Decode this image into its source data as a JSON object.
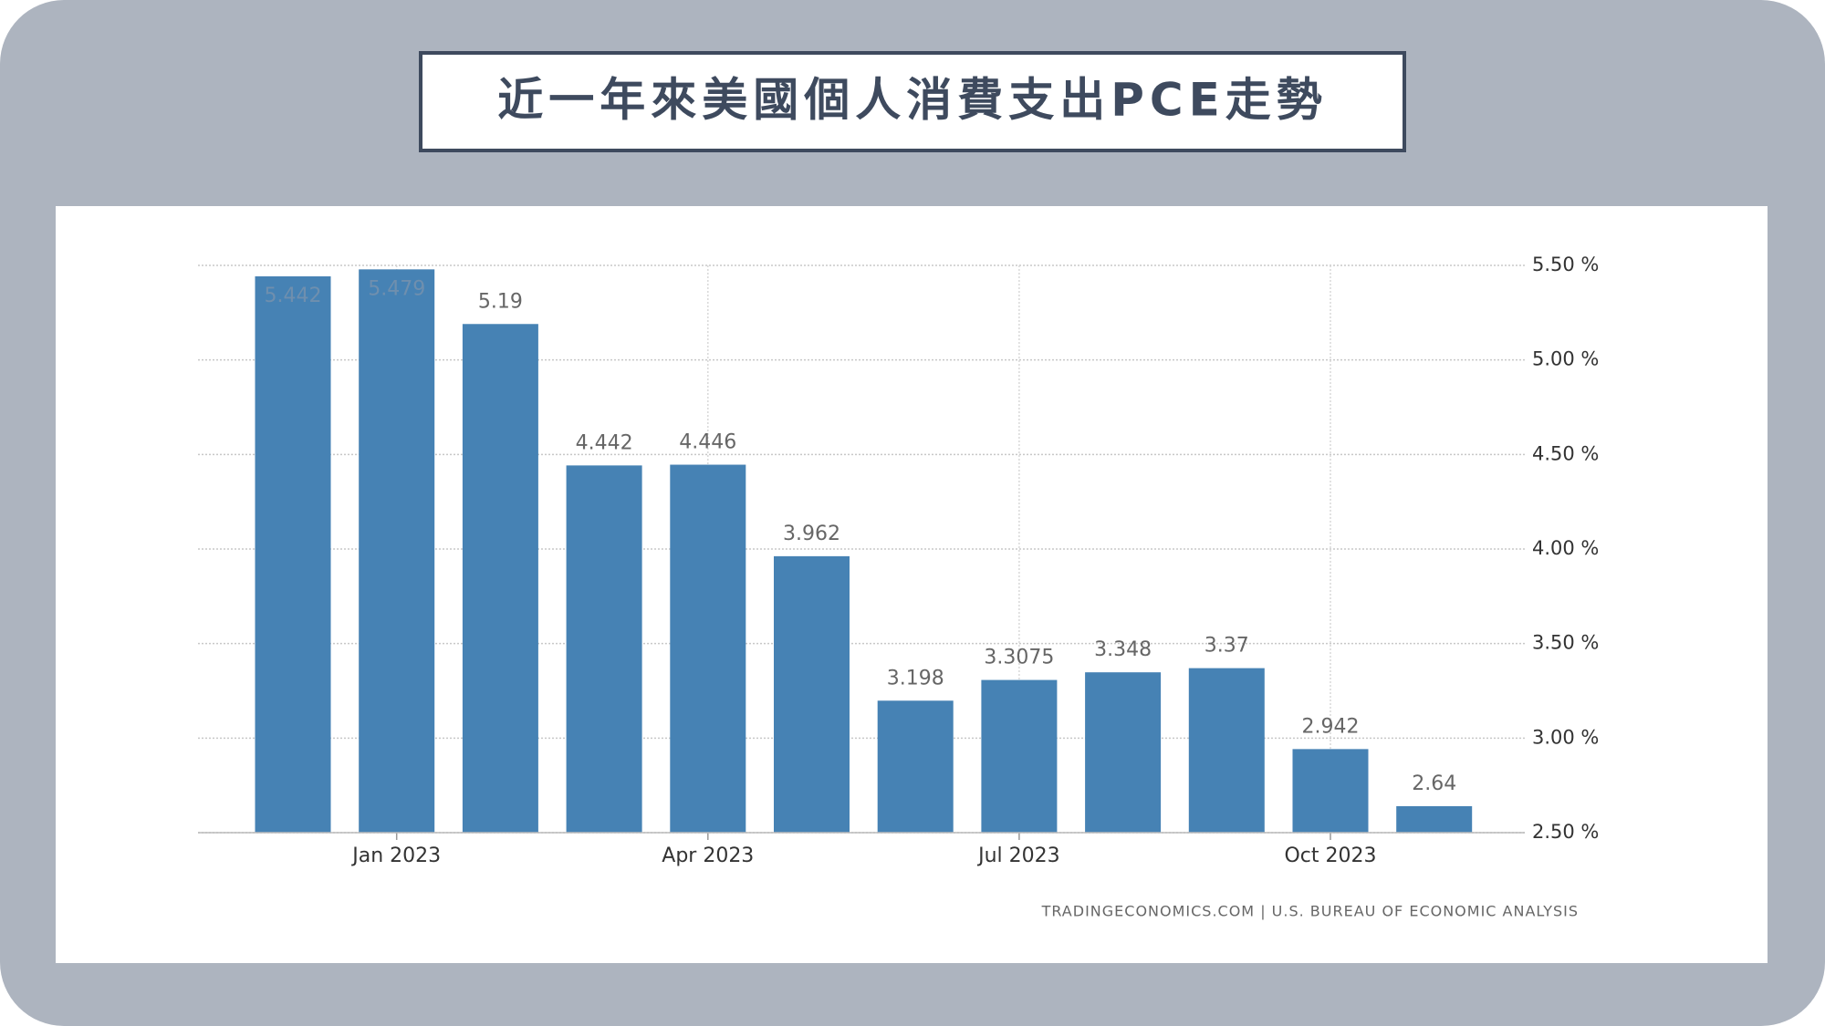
{
  "chart_data": {
    "type": "bar",
    "title": "近一年來美國個人消費支出PCE走勢",
    "source": "TRADINGECONOMICS.COM | U.S. BUREAU OF ECONOMIC ANALYSIS",
    "categories": [
      null,
      "Jan 2023",
      null,
      null,
      "Apr 2023",
      null,
      null,
      "Jul 2023",
      null,
      null,
      "Oct 2023",
      null
    ],
    "values": [
      5.442,
      5.479,
      5.19,
      4.442,
      4.446,
      3.962,
      3.198,
      3.3075,
      3.348,
      3.37,
      2.942,
      2.64
    ],
    "color": "#4682b4",
    "ylim": [
      2.5,
      5.5
    ],
    "yticks": [
      {
        "value": 2.5,
        "label": "2.50 %"
      },
      {
        "value": 3.0,
        "label": "3.00 %"
      },
      {
        "value": 3.5,
        "label": "3.50 %"
      },
      {
        "value": 4.0,
        "label": "4.00 %"
      },
      {
        "value": 4.5,
        "label": "4.50 %"
      },
      {
        "value": 5.0,
        "label": "5.00 %"
      },
      {
        "value": 5.5,
        "label": "5.50 %"
      }
    ],
    "grid": true
  }
}
